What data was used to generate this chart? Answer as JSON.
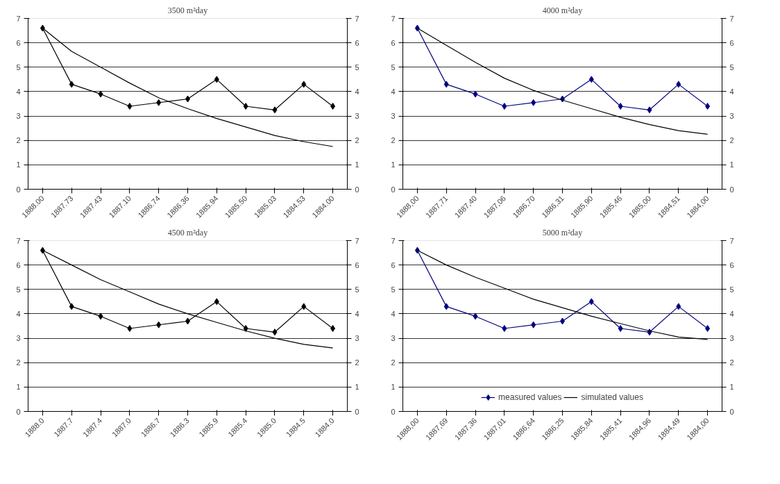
{
  "chart_data": [
    {
      "type": "line",
      "title": "3500 m²day",
      "categories": [
        "1888.00",
        "1887.73",
        "1887.43",
        "1887.10",
        "1886.74",
        "1886.36",
        "1885.94",
        "1885.50",
        "1885.03",
        "1884.53",
        "1884.00"
      ],
      "ylim": [
        0,
        7
      ],
      "yticks": [
        0,
        1,
        2,
        3,
        4,
        5,
        6,
        7
      ],
      "y2lim": [
        0,
        7
      ],
      "y2ticks": [
        0,
        1,
        2,
        3,
        4,
        5,
        6,
        7
      ],
      "grid": "y",
      "legend": false,
      "series": [
        {
          "color": "#000000",
          "marker": "diamond",
          "values": [
            6.6,
            4.3,
            3.9,
            3.4,
            3.55,
            3.7,
            4.5,
            3.4,
            3.25,
            4.3,
            3.4
          ]
        },
        {
          "color": "#000000",
          "marker": "none",
          "values": [
            6.6,
            5.65,
            5.0,
            4.35,
            3.75,
            3.3,
            2.9,
            2.55,
            2.2,
            1.95,
            1.75
          ]
        }
      ]
    },
    {
      "type": "line",
      "title": "4000 m²day",
      "categories": [
        "1888,00",
        "1887,71",
        "1887,40",
        "1887,06",
        "1886,70",
        "1886,31",
        "1885,90",
        "1885,46",
        "1885,00",
        "1884,51",
        "1884,00"
      ],
      "ylim": [
        0,
        7
      ],
      "yticks": [
        0,
        1,
        2,
        3,
        4,
        5,
        6,
        7
      ],
      "y2lim": [
        0,
        7
      ],
      "y2ticks": [
        0,
        1,
        2,
        3,
        4,
        5,
        6,
        7
      ],
      "grid": "y",
      "legend": false,
      "series": [
        {
          "color": "#000080",
          "marker": "diamond",
          "values": [
            6.6,
            4.3,
            3.9,
            3.4,
            3.55,
            3.7,
            4.5,
            3.4,
            3.25,
            4.3,
            3.4
          ]
        },
        {
          "color": "#000000",
          "marker": "none",
          "values": [
            6.6,
            5.9,
            5.2,
            4.55,
            4.05,
            3.65,
            3.3,
            2.95,
            2.65,
            2.4,
            2.25
          ]
        }
      ]
    },
    {
      "type": "line",
      "title": "4500 m²day",
      "categories": [
        "1888.0",
        "1887.7",
        "1887.4",
        "1887.0",
        "1886.7",
        "1886.3",
        "1885.9",
        "1885.4",
        "1885.0",
        "1884.5",
        "1884.0"
      ],
      "ylim": [
        0,
        7
      ],
      "yticks": [
        0,
        1,
        2,
        3,
        4,
        5,
        6,
        7
      ],
      "y2lim": [
        0,
        7
      ],
      "y2ticks": [
        0,
        1,
        2,
        3,
        4,
        5,
        6,
        7
      ],
      "grid": "y",
      "legend": false,
      "series": [
        {
          "color": "#000000",
          "marker": "diamond",
          "values": [
            6.6,
            4.3,
            3.9,
            3.4,
            3.55,
            3.7,
            4.5,
            3.4,
            3.25,
            4.3,
            3.4
          ]
        },
        {
          "color": "#000000",
          "marker": "none",
          "values": [
            6.6,
            6.0,
            5.4,
            4.9,
            4.4,
            4.0,
            3.65,
            3.3,
            3.0,
            2.75,
            2.6
          ]
        }
      ]
    },
    {
      "type": "line",
      "title": "5000 m²day",
      "categories": [
        "1888,00",
        "1887,69",
        "1887,36",
        "1887,01",
        "1886,64",
        "1886,25",
        "1885,84",
        "1885,41",
        "1884,96",
        "1884,49",
        "1884,00"
      ],
      "ylim": [
        0,
        7
      ],
      "yticks": [
        0,
        1,
        2,
        3,
        4,
        5,
        6,
        7
      ],
      "y2lim": [
        0,
        7
      ],
      "y2ticks": [
        0,
        1,
        2,
        3,
        4,
        5,
        6,
        7
      ],
      "grid": "y",
      "legend": "bottom",
      "series": [
        {
          "name": "measured values",
          "color": "#000080",
          "marker": "diamond",
          "values": [
            6.6,
            4.3,
            3.9,
            3.4,
            3.55,
            3.7,
            4.5,
            3.4,
            3.25,
            4.3,
            3.4
          ]
        },
        {
          "name": "simulated values",
          "color": "#000000",
          "marker": "none",
          "values": [
            6.6,
            6.0,
            5.5,
            5.05,
            4.6,
            4.25,
            3.9,
            3.6,
            3.3,
            3.05,
            2.95
          ]
        }
      ]
    }
  ]
}
